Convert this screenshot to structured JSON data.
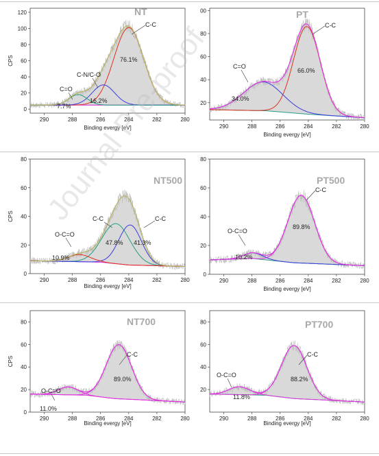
{
  "watermark": "Journal Pre-proof",
  "colors": {
    "envelope": "#c9c9a0",
    "fill": "#d9d9d9",
    "noise": "#bdbdbd",
    "bg": "#ff00ff"
  },
  "chart_data": [
    {
      "type": "line",
      "title": "NT",
      "xlabel": "Binding evergy [eV]",
      "ylabel": "CPS",
      "xlim": [
        291,
        280
      ],
      "ylim": [
        -5,
        125
      ],
      "xticks": [
        "290",
        "288",
        "286",
        "284",
        "282",
        "280"
      ],
      "yticks": [
        "0",
        "20",
        "40",
        "60",
        "80",
        "100",
        "120"
      ],
      "baseline": [
        [
          291,
          5
        ],
        [
          280,
          5
        ]
      ],
      "peaks": [
        {
          "label": "C-C",
          "pct": "76.1%",
          "center": 284.0,
          "height": 96,
          "sigma": 1.05,
          "color": "#e0301e"
        },
        {
          "label": "C-N/C-O",
          "pct": "16.2%",
          "center": 285.8,
          "height": 25,
          "sigma": 0.8,
          "color": "#3a3ae0"
        },
        {
          "label": "C=O",
          "pct": "7.7%",
          "center": 287.6,
          "height": 13,
          "sigma": 0.65,
          "color": "#20a080"
        }
      ],
      "envelope_color": "#b7b35a"
    },
    {
      "type": "line",
      "title": "PT",
      "xlabel": "Binding evergy [eV]",
      "ylabel": "",
      "xlim": [
        291,
        280
      ],
      "ylim": [
        5,
        102
      ],
      "xticks": [
        "290",
        "288",
        "286",
        "284",
        "282",
        "280"
      ],
      "yticks": [
        "20",
        "40",
        "60",
        "80",
        "00"
      ],
      "baseline": [
        [
          291,
          14
        ],
        [
          287,
          13
        ],
        [
          284,
          10
        ],
        [
          280,
          7
        ]
      ],
      "peaks": [
        {
          "label": "C-C",
          "pct": "66.0%",
          "center": 284.1,
          "height": 76,
          "sigma": 0.95,
          "color": "#e0301e"
        },
        {
          "label": "C=O",
          "pct": "34.0%",
          "center": 287.2,
          "height": 25,
          "sigma": 1.4,
          "color": "#3a3ae0"
        }
      ],
      "envelope_color": "#e030e0"
    },
    {
      "type": "line",
      "title": "NT500",
      "xlabel": "Binding evergy [eV]",
      "ylabel": "CPS",
      "xlim": [
        291,
        280
      ],
      "ylim": [
        0,
        80
      ],
      "xticks": [
        "290",
        "288",
        "286",
        "284",
        "282",
        "280"
      ],
      "yticks": [
        "0",
        "20",
        "40",
        "60",
        "80"
      ],
      "baseline": [
        [
          291,
          9
        ],
        [
          286,
          8
        ],
        [
          284,
          6
        ],
        [
          280,
          5
        ]
      ],
      "peaks": [
        {
          "label": "C-C",
          "pct": "47.8%",
          "center": 284.9,
          "height": 28,
          "sigma": 1.0,
          "color": "#20a080"
        },
        {
          "label": "C-C",
          "pct": "41.3%",
          "center": 283.9,
          "height": 28,
          "sigma": 0.8,
          "color": "#3a3ae0"
        },
        {
          "label": "O-C=O",
          "pct": "10.9%",
          "center": 287.5,
          "height": 5,
          "sigma": 0.8,
          "color": "#e0301e"
        }
      ],
      "envelope_color": "#b7b35a"
    },
    {
      "type": "line",
      "title": "PT500",
      "xlabel": "Binding evergy [eV]",
      "ylabel": "",
      "xlim": [
        291,
        280
      ],
      "ylim": [
        0,
        80
      ],
      "xticks": [
        "290",
        "288",
        "286",
        "284",
        "282",
        "280"
      ],
      "yticks": [
        "0",
        "20",
        "40",
        "60",
        "80"
      ],
      "baseline": [
        [
          291,
          10
        ],
        [
          288,
          11
        ],
        [
          285,
          8
        ],
        [
          280,
          6
        ]
      ],
      "peaks": [
        {
          "label": "C-C",
          "pct": "89.8%",
          "center": 284.5,
          "height": 47,
          "sigma": 0.95,
          "color": "#e030e0"
        },
        {
          "label": "O-C=O",
          "pct": "10.2%",
          "center": 287.9,
          "height": 4,
          "sigma": 0.7,
          "color": "#3a3ae0"
        }
      ],
      "envelope_color": "#e030e0"
    },
    {
      "type": "line",
      "title": "NT700",
      "xlabel": "Binding evergy [eV]",
      "ylabel": "CPS",
      "xlim": [
        291,
        280
      ],
      "ylim": [
        0,
        90
      ],
      "xticks": [
        "290",
        "288",
        "286",
        "284",
        "282",
        "280"
      ],
      "yticks": [
        "0",
        "20",
        "40",
        "60",
        "80"
      ],
      "baseline": [
        [
          291,
          16
        ],
        [
          287,
          15
        ],
        [
          285,
          12
        ],
        [
          280,
          9
        ]
      ],
      "peaks": [
        {
          "label": "C-C",
          "pct": "89.0%",
          "center": 284.7,
          "height": 48,
          "sigma": 0.9,
          "color": "#e030e0"
        },
        {
          "label": "O-C=O",
          "pct": "11.0%",
          "center": 288.3,
          "height": 7,
          "sigma": 0.7,
          "color": "#e030e0"
        }
      ],
      "envelope_color": "#e030e0"
    },
    {
      "type": "line",
      "title": "PT700",
      "xlabel": "Binding evergy [eV]",
      "ylabel": "",
      "xlim": [
        291,
        280
      ],
      "ylim": [
        0,
        90
      ],
      "xticks": [
        "290",
        "288",
        "286",
        "284",
        "282",
        "280"
      ],
      "yticks": [
        "20",
        "40",
        "60",
        "80"
      ],
      "baseline": [
        [
          291,
          16
        ],
        [
          287,
          15
        ],
        [
          285,
          12
        ],
        [
          280,
          9
        ]
      ],
      "peaks": [
        {
          "label": "C-C",
          "pct": "88.2%",
          "center": 285.0,
          "height": 47,
          "sigma": 0.9,
          "color": "#e030e0"
        },
        {
          "label": "O-C=O",
          "pct": "11.8%",
          "center": 288.9,
          "height": 7,
          "sigma": 0.75,
          "color": "#e030e0"
        }
      ],
      "envelope_color": "#e030e0"
    }
  ]
}
